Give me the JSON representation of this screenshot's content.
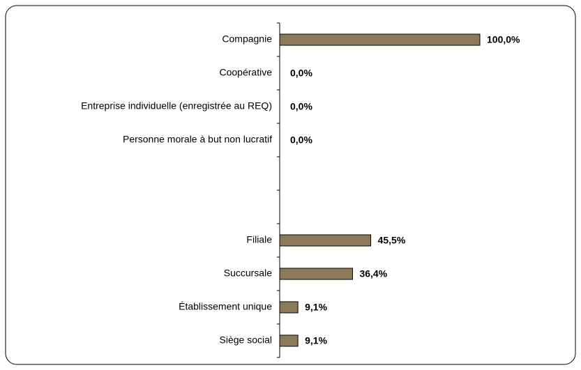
{
  "chart_data": {
    "type": "bar",
    "orientation": "horizontal",
    "categories": [
      "Compagnie",
      "Coopérative",
      "Entreprise individuelle (enregistrée au REQ)",
      "Personne morale à but non lucratif",
      null,
      null,
      "Filiale",
      "Succursale",
      "Établissement unique",
      "Siège social"
    ],
    "values": [
      100.0,
      0.0,
      0.0,
      0.0,
      null,
      null,
      45.5,
      36.4,
      9.1,
      9.1
    ],
    "value_labels": [
      "100,0%",
      "0,0%",
      "0,0%",
      "0,0%",
      null,
      null,
      "45,5%",
      "36,4%",
      "9,1%",
      "9,1%"
    ],
    "color": "#8b7a58"
  }
}
